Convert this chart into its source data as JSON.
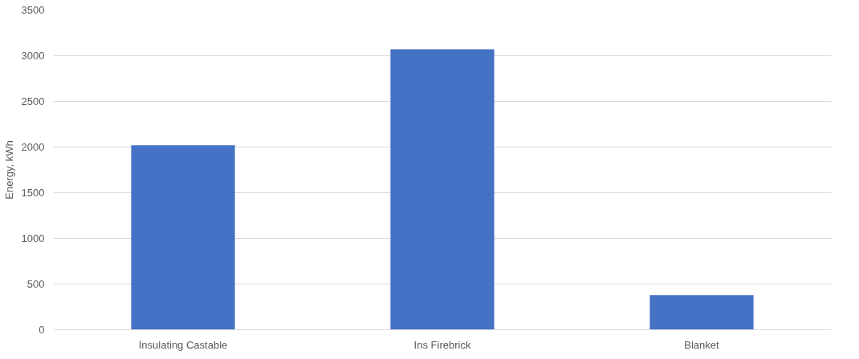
{
  "chart_data": {
    "type": "bar",
    "ylabel": "Energy, kWh",
    "categories": [
      "Insulating Castable",
      "Ins Firebrick",
      "Blanket"
    ],
    "values": [
      2020,
      3070,
      380
    ],
    "color": "#4472c4",
    "ylim": [
      0,
      3500
    ],
    "yticks": [
      0,
      500,
      1000,
      1500,
      2000,
      2500,
      3000,
      3500
    ],
    "grid": "y"
  }
}
